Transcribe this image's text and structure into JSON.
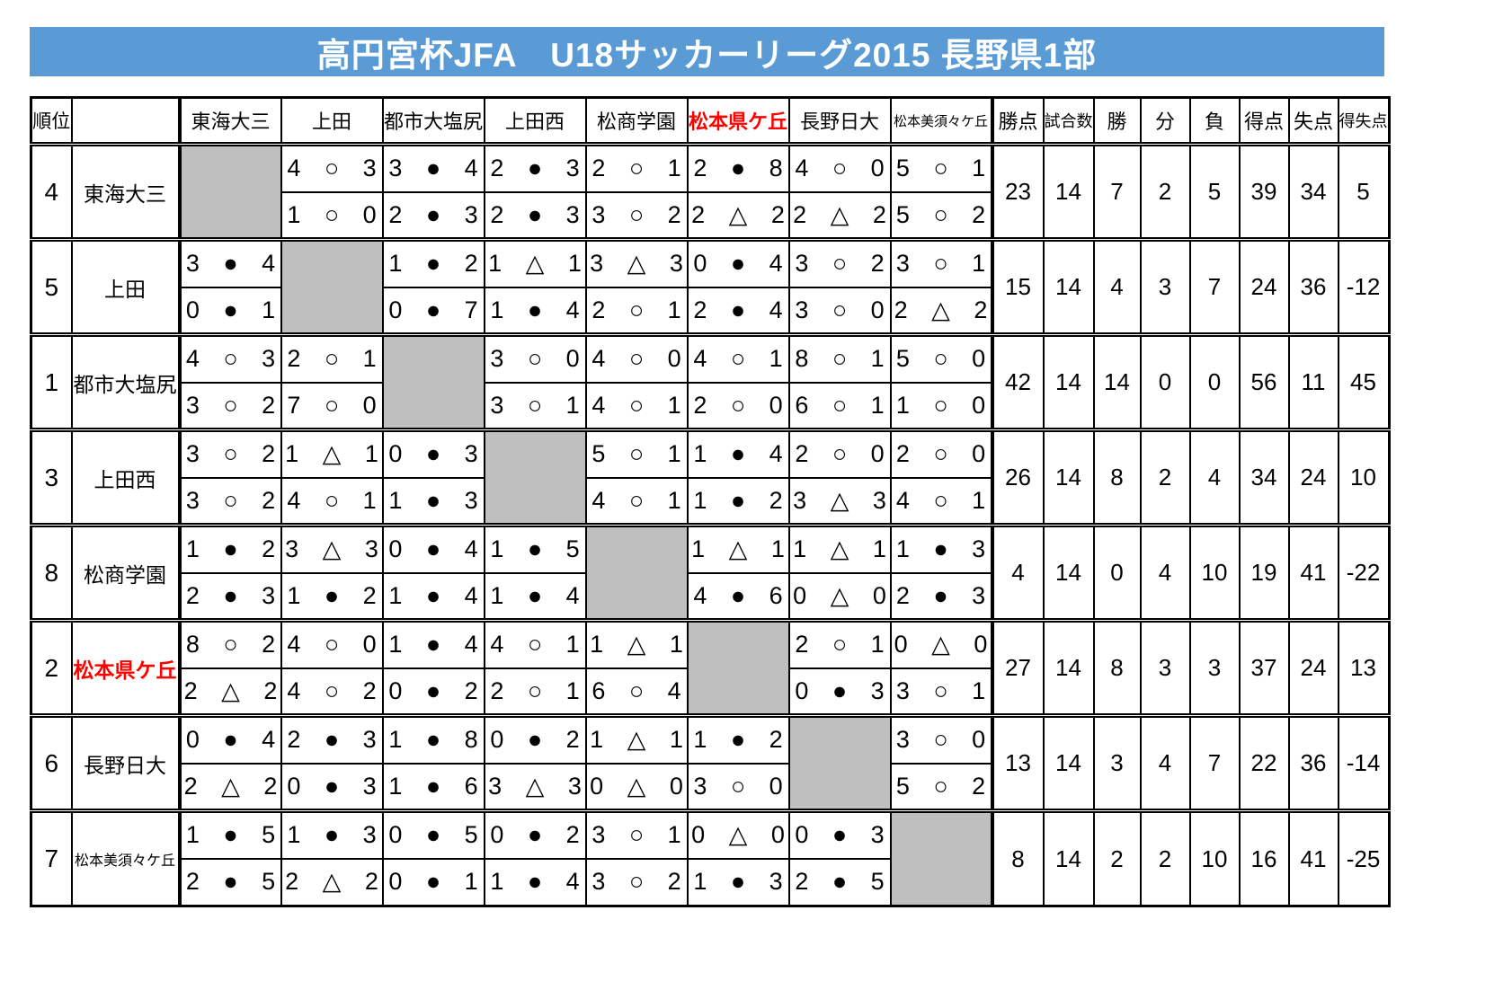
{
  "title": "高円宮杯JFA　U18サッカーリーグ2015 長野県1部",
  "colors": {
    "title_bg": "#5b9bd5",
    "title_text": "#ffffff",
    "highlight_red": "#ff0000",
    "self_cell_gray": "#bfbfbf"
  },
  "symbols": {
    "win": "○",
    "loss": "●",
    "draw": "△"
  },
  "table": {
    "rank_header": "順位",
    "team_header": "",
    "opponents": [
      "東海大三",
      "上田",
      "都市大塩尻",
      "上田西",
      "松商学園",
      "松本県ケ丘",
      "長野日大",
      "松本美須々ケ丘"
    ],
    "stat_headers": [
      "勝点",
      "試合数",
      "勝",
      "分",
      "負",
      "得点",
      "失点",
      "得失点"
    ],
    "highlight_team": "松本県ケ丘",
    "rows": [
      {
        "rank": "4",
        "team": "東海大三",
        "matches_top": [
          null,
          "4 ○ 3",
          "3 ● 4",
          "2 ● 3",
          "2 ○ 1",
          "2 ● 8",
          "4 ○ 0",
          "5 ○ 1"
        ],
        "matches_bottom": [
          null,
          "1 ○ 0",
          "2 ● 3",
          "2 ● 3",
          "3 ○ 2",
          "2 △ 2",
          "2 △ 2",
          "5 ○ 2"
        ],
        "stats": [
          "23",
          "14",
          "7",
          "2",
          "5",
          "39",
          "34",
          "5"
        ]
      },
      {
        "rank": "5",
        "team": "上田",
        "matches_top": [
          "3 ● 4",
          null,
          "1 ● 2",
          "1 △ 1",
          "3 △ 3",
          "0 ● 4",
          "3 ○ 2",
          "3 ○ 1"
        ],
        "matches_bottom": [
          "0 ● 1",
          null,
          "0 ● 7",
          "1 ● 4",
          "2 ○ 1",
          "2 ● 4",
          "3 ○ 0",
          "2 △ 2"
        ],
        "stats": [
          "15",
          "14",
          "4",
          "3",
          "7",
          "24",
          "36",
          "-12"
        ]
      },
      {
        "rank": "1",
        "team": "都市大塩尻",
        "matches_top": [
          "4 ○ 3",
          "2 ○ 1",
          null,
          "3 ○ 0",
          "4 ○ 0",
          "4 ○ 1",
          "8 ○ 1",
          "5 ○ 0"
        ],
        "matches_bottom": [
          "3 ○ 2",
          "7 ○ 0",
          null,
          "3 ○ 1",
          "4 ○ 1",
          "2 ○ 0",
          "6 ○ 1",
          "1 ○ 0"
        ],
        "stats": [
          "42",
          "14",
          "14",
          "0",
          "0",
          "56",
          "11",
          "45"
        ]
      },
      {
        "rank": "3",
        "team": "上田西",
        "matches_top": [
          "3 ○ 2",
          "1 △ 1",
          "0 ● 3",
          null,
          "5 ○ 1",
          "1 ● 4",
          "2 ○ 0",
          "2 ○ 0"
        ],
        "matches_bottom": [
          "3 ○ 2",
          "4 ○ 1",
          "1 ● 3",
          null,
          "4 ○ 1",
          "1 ● 2",
          "3 △ 3",
          "4 ○ 1"
        ],
        "stats": [
          "26",
          "14",
          "8",
          "2",
          "4",
          "34",
          "24",
          "10"
        ]
      },
      {
        "rank": "8",
        "team": "松商学園",
        "matches_top": [
          "1 ● 2",
          "3 △ 3",
          "0 ● 4",
          "1 ● 5",
          null,
          "1 △ 1",
          "1 △ 1",
          "1 ● 3"
        ],
        "matches_bottom": [
          "2 ● 3",
          "1 ● 2",
          "1 ● 4",
          "1 ● 4",
          null,
          "4 ● 6",
          "0 △ 0",
          "2 ● 3"
        ],
        "stats": [
          "4",
          "14",
          "0",
          "4",
          "10",
          "19",
          "41",
          "-22"
        ]
      },
      {
        "rank": "2",
        "team": "松本県ケ丘",
        "matches_top": [
          "8 ○ 2",
          "4 ○ 0",
          "1 ● 4",
          "4 ○ 1",
          "1 △ 1",
          null,
          "2 ○ 1",
          "0 △ 0"
        ],
        "matches_bottom": [
          "2 △ 2",
          "4 ○ 2",
          "0 ● 2",
          "2 ○ 1",
          "6 ○ 4",
          null,
          "0 ● 3",
          "3 ○ 1"
        ],
        "stats": [
          "27",
          "14",
          "8",
          "3",
          "3",
          "37",
          "24",
          "13"
        ]
      },
      {
        "rank": "6",
        "team": "長野日大",
        "matches_top": [
          "0 ● 4",
          "2 ● 3",
          "1 ● 8",
          "0 ● 2",
          "1 △ 1",
          "1 ● 2",
          null,
          "3 ○ 0"
        ],
        "matches_bottom": [
          "2 △ 2",
          "0 ● 3",
          "1 ● 6",
          "3 △ 3",
          "0 △ 0",
          "3 ○ 0",
          null,
          "5 ○ 2"
        ],
        "stats": [
          "13",
          "14",
          "3",
          "4",
          "7",
          "22",
          "36",
          "-14"
        ]
      },
      {
        "rank": "7",
        "team": "松本美須々ケ丘",
        "matches_top": [
          "1 ● 5",
          "1 ● 3",
          "0 ● 5",
          "0 ● 2",
          "3 ○ 1",
          "0 △ 0",
          "0 ● 3",
          null
        ],
        "matches_bottom": [
          "2 ● 5",
          "2 △ 2",
          "0 ● 1",
          "1 ● 4",
          "3 ○ 2",
          "1 ● 3",
          "2 ● 5",
          null
        ],
        "stats": [
          "8",
          "14",
          "2",
          "2",
          "10",
          "16",
          "41",
          "-25"
        ]
      }
    ]
  }
}
